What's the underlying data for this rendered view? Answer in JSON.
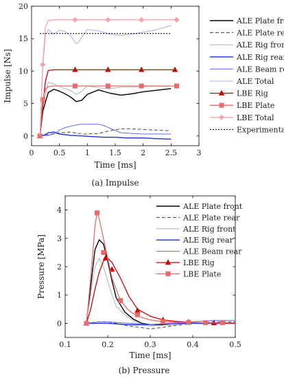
{
  "chart_data": [
    {
      "type": "line",
      "caption": "(a)  Impulse",
      "xlabel": "Time [ms]",
      "ylabel": "Impulse [Ns]",
      "xlim": [
        0,
        3
      ],
      "ylim": [
        -1.5,
        20
      ],
      "xticks": [
        0,
        0.5,
        1,
        1.5,
        2,
        2.5,
        3
      ],
      "yticks": [
        0,
        5,
        10,
        15,
        20
      ],
      "xtick_labels": [
        "0",
        "0.5",
        "1",
        "1.5",
        "2",
        "2.5",
        "3"
      ],
      "ytick_labels": [
        "0",
        "5",
        "10",
        "15",
        "20"
      ],
      "legend": "right",
      "series": [
        {
          "name": "ALE Plate front",
          "color": "#000000",
          "dash": "",
          "width": 1.4,
          "marker": "",
          "x": [
            0.15,
            0.2,
            0.3,
            0.4,
            0.5,
            0.6,
            0.7,
            0.8,
            0.9,
            1.0,
            1.2,
            1.4,
            1.6,
            1.8,
            2.0,
            2.2,
            2.5
          ],
          "y": [
            0,
            3.8,
            6.7,
            7.2,
            6.9,
            6.5,
            6.0,
            5.3,
            5.5,
            6.4,
            7.1,
            6.6,
            6.3,
            6.5,
            6.8,
            7.0,
            7.3
          ]
        },
        {
          "name": "ALE Plate rear",
          "color": "#555555",
          "dash": "5,3",
          "width": 1.1,
          "marker": "",
          "x": [
            0.15,
            0.3,
            0.5,
            0.7,
            0.9,
            1.0,
            1.2,
            1.4,
            1.6,
            1.8,
            2.0,
            2.5
          ],
          "y": [
            0,
            0.2,
            0.5,
            0.6,
            0.3,
            0.3,
            0.4,
            0.8,
            1.1,
            1.1,
            1.0,
            0.8
          ]
        },
        {
          "name": "ALE Rig front",
          "color": "#b8b8b8",
          "dash": "",
          "width": 1.1,
          "marker": "",
          "x": [
            0.15,
            0.2,
            0.3,
            0.4,
            0.5,
            0.6,
            0.7,
            0.8,
            0.9,
            1.0,
            1.2,
            1.4,
            1.6,
            2.0,
            2.5
          ],
          "y": [
            0,
            4.5,
            8.3,
            8.0,
            7.6,
            7.3,
            7.0,
            6.4,
            6.9,
            7.7,
            7.4,
            7.3,
            7.5,
            7.6,
            7.7
          ]
        },
        {
          "name": "ALE Rig rear",
          "color": "#1f2fd6",
          "dash": "",
          "width": 1.4,
          "marker": "",
          "x": [
            0.15,
            0.25,
            0.3,
            0.4,
            0.5,
            0.7,
            0.9,
            1.1,
            1.3,
            1.5,
            1.7,
            2.0,
            2.2,
            2.5
          ],
          "y": [
            0,
            0.2,
            0.5,
            0.6,
            0.3,
            0.1,
            0.0,
            -0.1,
            -0.2,
            -0.2,
            -0.3,
            -0.3,
            -0.4,
            -0.5
          ]
        },
        {
          "name": "ALE Beam rear",
          "color": "#5a6ee8",
          "dash": "",
          "width": 1.0,
          "marker": "",
          "x": [
            0.15,
            0.3,
            0.4,
            0.5,
            0.6,
            0.7,
            0.8,
            0.9,
            1.0,
            1.2,
            1.3,
            1.4,
            1.6,
            1.8,
            2.0,
            2.5
          ],
          "y": [
            0,
            0.1,
            0.3,
            0.9,
            1.3,
            1.5,
            1.7,
            1.8,
            1.8,
            1.8,
            1.6,
            1.2,
            0.5,
            0.4,
            0.3,
            0.3
          ]
        },
        {
          "name": "ALE Total",
          "color": "#a9b4f0",
          "dash": "",
          "width": 1.1,
          "marker": "",
          "x": [
            0.15,
            0.2,
            0.25,
            0.3,
            0.35,
            0.4,
            0.5,
            0.6,
            0.7,
            0.75,
            0.8,
            0.85,
            0.9,
            1.0,
            1.2,
            1.4,
            1.6,
            1.8,
            2.0,
            2.2,
            2.5
          ],
          "y": [
            0,
            10.5,
            15.5,
            16.4,
            16.0,
            15.7,
            16.3,
            16.1,
            15.5,
            14.8,
            14.2,
            14.5,
            15.2,
            16.4,
            16.2,
            15.7,
            15.5,
            15.7,
            16.0,
            16.3,
            17.0
          ]
        },
        {
          "name": "LBE Rig",
          "color": "#cc0000",
          "dash": "",
          "width": 1.3,
          "marker": "triangle",
          "x": [
            0.15,
            0.2,
            0.25,
            0.3,
            0.4,
            0.5,
            0.6,
            0.8,
            1.0,
            1.37,
            1.5,
            1.97,
            2.0,
            2.57
          ],
          "y": [
            0,
            4.5,
            8.5,
            10.1,
            10.2,
            10.2,
            10.2,
            10.2,
            10.2,
            10.2,
            10.2,
            10.2,
            10.2,
            10.2
          ],
          "marker_x": [
            0.15,
            0.78,
            1.37,
            1.97,
            2.57
          ],
          "marker_y": [
            0,
            10.2,
            10.2,
            10.2,
            10.2
          ]
        },
        {
          "name": "LBE Plate",
          "color": "#e86a6a",
          "dash": "",
          "width": 1.3,
          "marker": "square",
          "x": [
            0.15,
            0.18,
            0.2,
            0.25,
            0.3,
            0.4,
            0.5,
            0.8,
            1.0,
            1.5,
            2.0,
            2.6
          ],
          "y": [
            0,
            3.5,
            5.6,
            7.2,
            7.6,
            7.7,
            7.7,
            7.7,
            7.7,
            7.7,
            7.7,
            7.7
          ],
          "marker_x": [
            0.15,
            0.2,
            0.78,
            1.37,
            1.97,
            2.6
          ],
          "marker_y": [
            0,
            5.6,
            7.7,
            7.7,
            7.7,
            7.7
          ]
        },
        {
          "name": "LBE Total",
          "color": "#f4a3ad",
          "dash": "",
          "width": 1.3,
          "marker": "diamond",
          "x": [
            0.15,
            0.2,
            0.25,
            0.3,
            0.4,
            0.5,
            0.8,
            1.0,
            1.5,
            2.0,
            2.6
          ],
          "y": [
            0,
            11.0,
            16.8,
            17.8,
            17.9,
            17.9,
            17.9,
            17.9,
            17.9,
            17.9,
            17.9
          ],
          "marker_x": [
            0.2,
            0.78,
            1.37,
            1.97,
            2.6
          ],
          "marker_y": [
            11.0,
            17.9,
            17.9,
            17.9,
            17.9
          ]
        },
        {
          "name": "Experimental",
          "color": "#000000",
          "dash": "2,2",
          "width": 1.1,
          "marker": "",
          "x": [
            0.15,
            2.5
          ],
          "y": [
            15.8,
            15.8
          ]
        }
      ]
    },
    {
      "type": "line",
      "caption": "(b)  Pressure",
      "xlabel": "Time [ms]",
      "ylabel": "Pressure [MPa]",
      "xlim": [
        0.1,
        0.5
      ],
      "ylim": [
        -0.5,
        4.5
      ],
      "xticks": [
        0.1,
        0.2,
        0.3,
        0.4,
        0.5
      ],
      "yticks": [
        0,
        1,
        2,
        3,
        4
      ],
      "xtick_labels": [
        "0.1",
        "0.2",
        "0.3",
        "0.4",
        "0.5"
      ],
      "ytick_labels": [
        "0",
        "1",
        "2",
        "3",
        "4"
      ],
      "legend": "top-right",
      "series": [
        {
          "name": "ALE Plate front",
          "color": "#000000",
          "dash": "",
          "width": 1.4,
          "marker": "",
          "x": [
            0.15,
            0.16,
            0.17,
            0.18,
            0.19,
            0.2,
            0.21,
            0.22,
            0.24,
            0.26,
            0.28,
            0.3,
            0.35,
            0.4,
            0.5
          ],
          "y": [
            0,
            1.3,
            2.6,
            2.95,
            2.8,
            2.2,
            1.5,
            0.9,
            0.4,
            0.15,
            0.0,
            -0.05,
            -0.05,
            0.0,
            0.0
          ]
        },
        {
          "name": "ALE Plate rear",
          "color": "#555555",
          "dash": "5,3",
          "width": 1.1,
          "marker": "",
          "x": [
            0.15,
            0.18,
            0.2,
            0.22,
            0.25,
            0.28,
            0.3,
            0.35,
            0.4,
            0.45,
            0.5
          ],
          "y": [
            0,
            0.05,
            0.05,
            0.0,
            -0.1,
            -0.15,
            -0.2,
            -0.1,
            0.0,
            0.05,
            0.05
          ]
        },
        {
          "name": "ALE Rig front",
          "color": "#b8b8b8",
          "dash": "",
          "width": 1.1,
          "marker": "",
          "x": [
            0.15,
            0.16,
            0.17,
            0.18,
            0.19,
            0.2,
            0.21,
            0.22,
            0.24,
            0.26,
            0.28,
            0.3,
            0.35,
            0.4,
            0.5
          ],
          "y": [
            0,
            1.0,
            2.0,
            2.3,
            2.0,
            1.5,
            1.0,
            0.6,
            0.3,
            0.1,
            -0.05,
            -0.1,
            -0.05,
            0.0,
            0.0
          ]
        },
        {
          "name": "ALE Rig rear",
          "color": "#1f2fd6",
          "dash": "",
          "width": 1.4,
          "marker": "",
          "x": [
            0.15,
            0.2,
            0.25,
            0.3,
            0.35,
            0.4,
            0.45,
            0.5
          ],
          "y": [
            0,
            0.0,
            -0.05,
            -0.05,
            0.0,
            0.0,
            0.0,
            0.0
          ]
        },
        {
          "name": "ALE Beam rear",
          "color": "#5a6ee8",
          "dash": "",
          "width": 1.0,
          "marker": "",
          "x": [
            0.15,
            0.18,
            0.2,
            0.25,
            0.3,
            0.35,
            0.4,
            0.45,
            0.5
          ],
          "y": [
            0,
            0.05,
            0.05,
            0.0,
            -0.05,
            0.0,
            0.05,
            0.1,
            0.1
          ]
        },
        {
          "name": "LBE Rig",
          "color": "#cc0000",
          "dash": "",
          "width": 1.3,
          "marker": "triangle",
          "x": [
            0.15,
            0.16,
            0.17,
            0.18,
            0.19,
            0.2,
            0.21,
            0.23,
            0.25,
            0.27,
            0.3,
            0.33,
            0.36,
            0.39,
            0.42,
            0.45,
            0.5
          ],
          "y": [
            0,
            0.5,
            1.2,
            1.8,
            2.2,
            2.3,
            2.15,
            1.6,
            0.95,
            0.5,
            0.25,
            0.12,
            0.07,
            0.04,
            0.02,
            0.01,
            0.0
          ],
          "marker_x": [
            0.15,
            0.195,
            0.21,
            0.27,
            0.33,
            0.39,
            0.45
          ],
          "marker_y": [
            0,
            2.3,
            1.9,
            0.45,
            0.12,
            0.04,
            0.01
          ]
        },
        {
          "name": "LBE Plate",
          "color": "#e86a6a",
          "dash": "",
          "width": 1.3,
          "marker": "square",
          "x": [
            0.15,
            0.16,
            0.17,
            0.175,
            0.18,
            0.19,
            0.2,
            0.21,
            0.23,
            0.25,
            0.27,
            0.3,
            0.33,
            0.36,
            0.39,
            0.43,
            0.47,
            0.5
          ],
          "y": [
            0,
            1.6,
            3.4,
            3.9,
            3.7,
            3.0,
            2.3,
            1.6,
            0.8,
            0.45,
            0.25,
            0.12,
            0.06,
            0.04,
            0.03,
            0.02,
            0.02,
            0.02
          ],
          "marker_x": [
            0.15,
            0.175,
            0.19,
            0.23,
            0.27,
            0.33,
            0.39,
            0.43,
            0.47
          ],
          "marker_y": [
            0,
            3.9,
            2.5,
            0.8,
            0.3,
            0.06,
            0.03,
            0.02,
            0.02
          ]
        }
      ]
    }
  ]
}
